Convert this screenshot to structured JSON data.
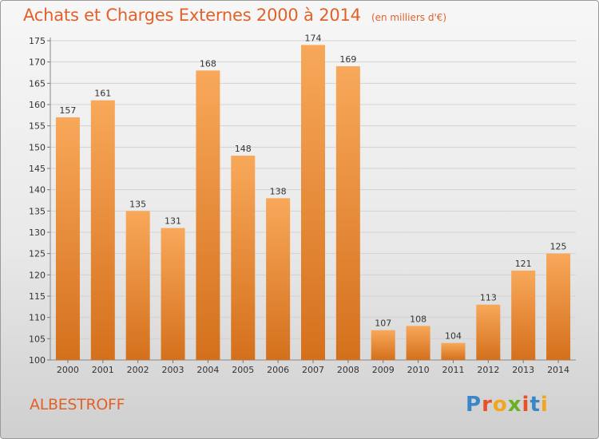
{
  "header": {
    "title": "Achats et Charges Externes 2000 à 2014",
    "unit": "(en milliers d'€)"
  },
  "location": "ALBESTROFF",
  "logo": {
    "text": "Proxiti",
    "letter_colors": [
      "#3a86c8",
      "#e8502a",
      "#f2a51d",
      "#6ab023",
      "#e8502a",
      "#3a86c8",
      "#f2a51d"
    ]
  },
  "colors": {
    "accent": "#e0622a",
    "bar_light": "#f8a85a",
    "bar_dark": "#d4701c"
  },
  "chart_data": {
    "type": "bar",
    "title": "Achats et Charges Externes 2000 à 2014",
    "categories": [
      "2000",
      "2001",
      "2002",
      "2003",
      "2004",
      "2005",
      "2006",
      "2007",
      "2008",
      "2009",
      "2010",
      "2011",
      "2012",
      "2013",
      "2014"
    ],
    "values": [
      157,
      161,
      135,
      131,
      168,
      148,
      138,
      174,
      169,
      107,
      108,
      104,
      113,
      121,
      125
    ],
    "ylim": [
      100,
      175
    ],
    "yticks": [
      100,
      105,
      110,
      115,
      120,
      125,
      130,
      135,
      140,
      145,
      150,
      155,
      160,
      165,
      170,
      175
    ],
    "grid": true
  }
}
